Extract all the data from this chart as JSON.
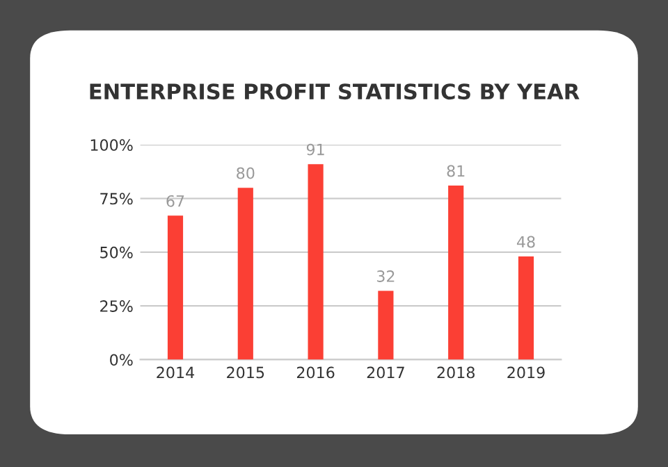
{
  "chart_data": {
    "type": "bar",
    "title": "ENTERPRISE PROFIT STATISTICS BY YEAR",
    "categories": [
      "2014",
      "2015",
      "2016",
      "2017",
      "2018",
      "2019"
    ],
    "values": [
      67,
      80,
      91,
      32,
      81,
      48
    ],
    "color": "#fb3f34",
    "ylim": [
      0,
      100
    ],
    "yticks": [
      {
        "value": 0,
        "label": "0%"
      },
      {
        "value": 25,
        "label": "25%"
      },
      {
        "value": 50,
        "label": "50%"
      },
      {
        "value": 75,
        "label": "75%"
      },
      {
        "value": 100,
        "label": "100%"
      }
    ],
    "grid": "y",
    "data_labels": true
  }
}
